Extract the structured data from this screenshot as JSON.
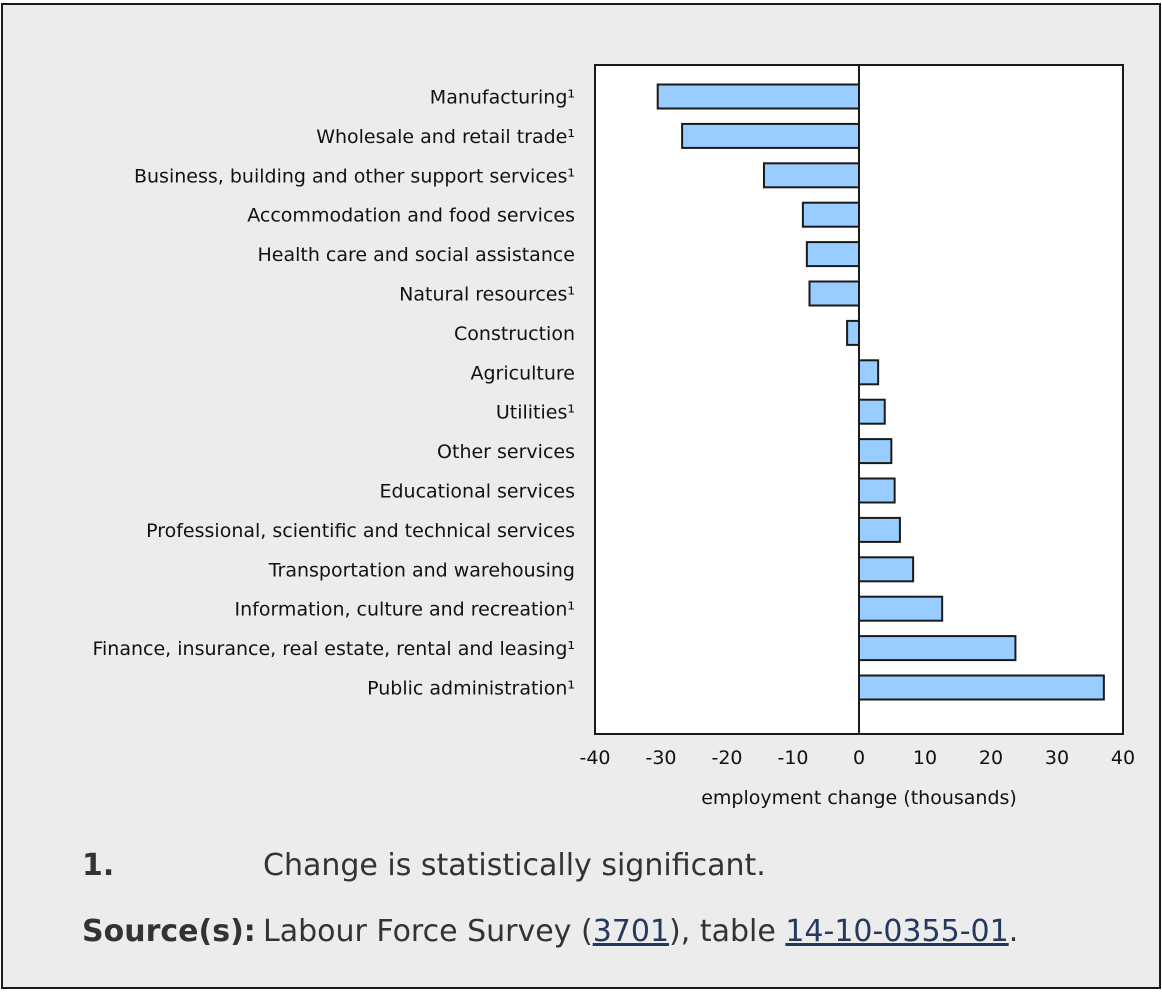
{
  "chart_data": {
    "type": "bar",
    "orientation": "horizontal",
    "categories": [
      "Manufacturing¹",
      "Wholesale and retail trade¹",
      "Business, building and other support services¹",
      "Accommodation and food services",
      "Health care and social assistance",
      "Natural resources¹",
      "Construction",
      "Agriculture",
      "Utilities¹",
      "Other services",
      "Educational services",
      "Professional, scientific and technical services",
      "Transportation and warehousing",
      "Information, culture and recreation¹",
      "Finance, insurance, real estate, rental and leasing¹",
      "Public administration¹"
    ],
    "values": [
      -30.5,
      -26.8,
      -14.4,
      -8.5,
      -7.9,
      -7.5,
      -1.8,
      2.9,
      3.9,
      4.9,
      5.4,
      6.2,
      8.2,
      12.6,
      23.7,
      37.1
    ],
    "xlabel": "employment change (thousands)",
    "xlim": [
      -40,
      40
    ],
    "xticks": [
      -40,
      -30,
      -20,
      -10,
      0,
      10,
      20,
      30,
      40
    ],
    "grid": false,
    "bar_color": "#99ccff",
    "bar_edge_color": "#1a1a1a"
  },
  "footnotes": {
    "note_key": "1.",
    "note_text": "Change is statistically significant.",
    "source_key": "Source(s):",
    "source_prefix": "Labour Force Survey (",
    "source_link1": "3701",
    "source_mid": "), table ",
    "source_link2": "14-10-0355-01",
    "source_suffix": "."
  },
  "colors": {
    "background": "#ececec",
    "plot_background": "#ffffff",
    "link": "#23395d"
  }
}
